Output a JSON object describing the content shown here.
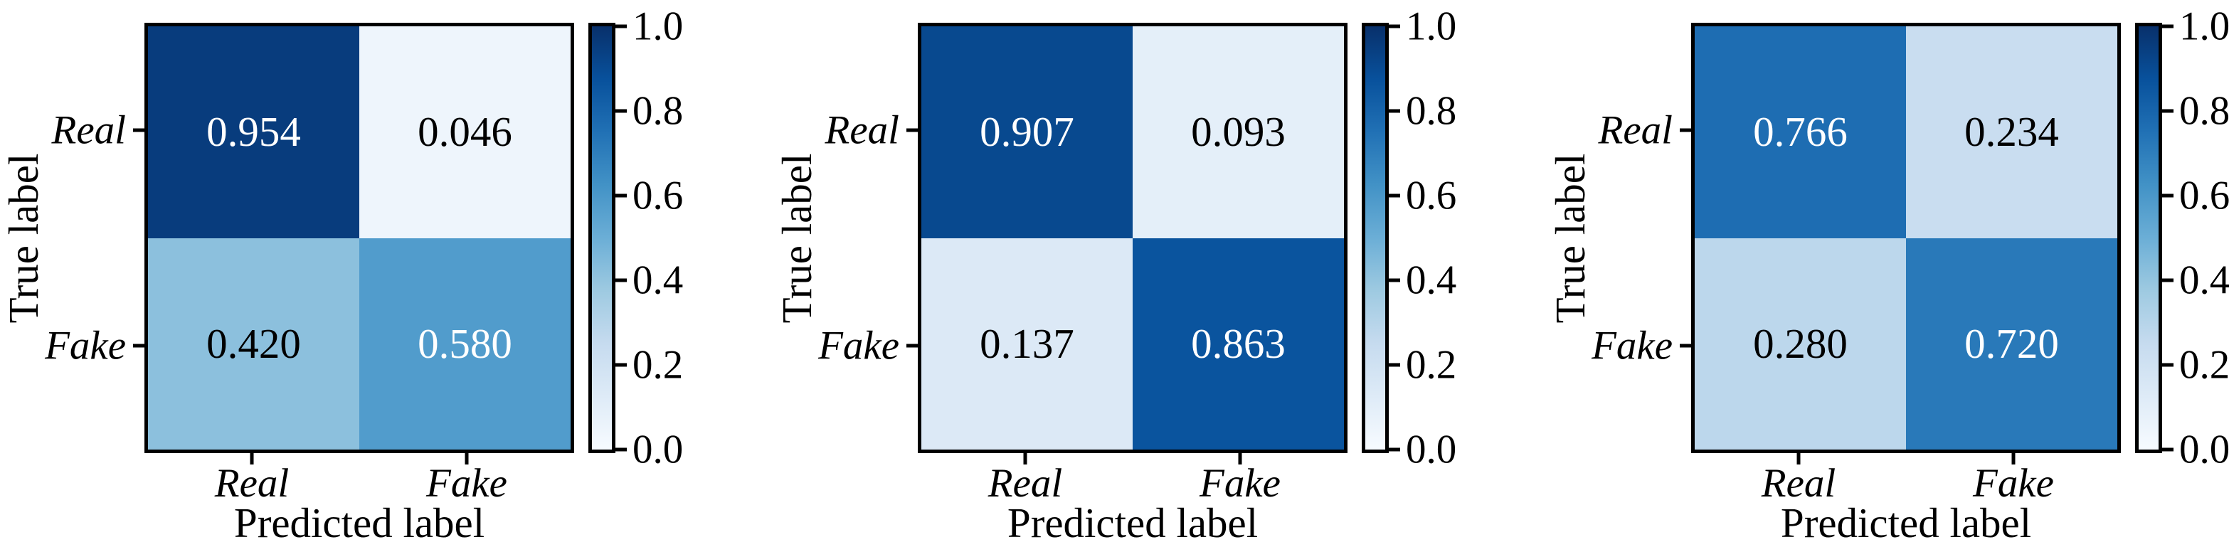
{
  "figure": {
    "background": "#ffffff",
    "colormap": {
      "name": "Blues",
      "stops": [
        "#f7fbff",
        "#deebf7",
        "#c6dbef",
        "#9ecae1",
        "#6baed6",
        "#4292c6",
        "#2171b5",
        "#08519c",
        "#08306b"
      ]
    },
    "colorbar": {
      "range": [
        0.0,
        1.0
      ],
      "tick_labels_top_to_bottom": [
        "1.0",
        "0.8",
        "0.6",
        "0.4",
        "0.2",
        "0.0"
      ]
    }
  },
  "panels": [
    {
      "ylabel": "True label",
      "xlabel": "Predicted label",
      "row_labels": [
        "Real",
        "Fake"
      ],
      "col_labels": [
        "Real",
        "Fake"
      ],
      "cells": [
        {
          "value": "0.954",
          "bg": "#083c7d",
          "fg": "#ffffff"
        },
        {
          "value": "0.046",
          "bg": "#eef5fc",
          "fg": "#000000"
        },
        {
          "value": "0.420",
          "bg": "#8cc0dd",
          "fg": "#000000"
        },
        {
          "value": "0.580",
          "bg": "#519ccc",
          "fg": "#ffffff"
        }
      ]
    },
    {
      "ylabel": "True label",
      "xlabel": "Predicted label",
      "row_labels": [
        "Real",
        "Fake"
      ],
      "col_labels": [
        "Real",
        "Fake"
      ],
      "cells": [
        {
          "value": "0.907",
          "bg": "#08498f",
          "fg": "#ffffff"
        },
        {
          "value": "0.093",
          "bg": "#e4eff9",
          "fg": "#000000"
        },
        {
          "value": "0.137",
          "bg": "#dce9f6",
          "fg": "#000000"
        },
        {
          "value": "0.863",
          "bg": "#0a549e",
          "fg": "#ffffff"
        }
      ]
    },
    {
      "ylabel": "True label",
      "xlabel": "Predicted label",
      "row_labels": [
        "Real",
        "Fake"
      ],
      "col_labels": [
        "Real",
        "Fake"
      ],
      "cells": [
        {
          "value": "0.766",
          "bg": "#1e6db2",
          "fg": "#ffffff"
        },
        {
          "value": "0.234",
          "bg": "#c9ddf0",
          "fg": "#000000"
        },
        {
          "value": "0.280",
          "bg": "#bcd7ec",
          "fg": "#000000"
        },
        {
          "value": "0.720",
          "bg": "#2979b9",
          "fg": "#ffffff"
        }
      ]
    }
  ],
  "chart_data": [
    {
      "type": "heatmap",
      "title": "",
      "xlabel": "Predicted label",
      "ylabel": "True label",
      "x_categories": [
        "Real",
        "Fake"
      ],
      "y_categories": [
        "Real",
        "Fake"
      ],
      "values": [
        [
          0.954,
          0.046
        ],
        [
          0.42,
          0.58
        ]
      ],
      "colormap": "Blues",
      "value_range": [
        0.0,
        1.0
      ],
      "colorbar_ticks": [
        0.0,
        0.2,
        0.4,
        0.6,
        0.8,
        1.0
      ],
      "legend_position": "right-colorbar",
      "grid": false
    },
    {
      "type": "heatmap",
      "title": "",
      "xlabel": "Predicted label",
      "ylabel": "True label",
      "x_categories": [
        "Real",
        "Fake"
      ],
      "y_categories": [
        "Real",
        "Fake"
      ],
      "values": [
        [
          0.907,
          0.093
        ],
        [
          0.137,
          0.863
        ]
      ],
      "colormap": "Blues",
      "value_range": [
        0.0,
        1.0
      ],
      "colorbar_ticks": [
        0.0,
        0.2,
        0.4,
        0.6,
        0.8,
        1.0
      ],
      "legend_position": "right-colorbar",
      "grid": false
    },
    {
      "type": "heatmap",
      "title": "",
      "xlabel": "Predicted label",
      "ylabel": "True label",
      "x_categories": [
        "Real",
        "Fake"
      ],
      "y_categories": [
        "Real",
        "Fake"
      ],
      "values": [
        [
          0.766,
          0.234
        ],
        [
          0.28,
          0.72
        ]
      ],
      "colormap": "Blues",
      "value_range": [
        0.0,
        1.0
      ],
      "colorbar_ticks": [
        0.0,
        0.2,
        0.4,
        0.6,
        0.8,
        1.0
      ],
      "legend_position": "right-colorbar",
      "grid": false
    }
  ]
}
